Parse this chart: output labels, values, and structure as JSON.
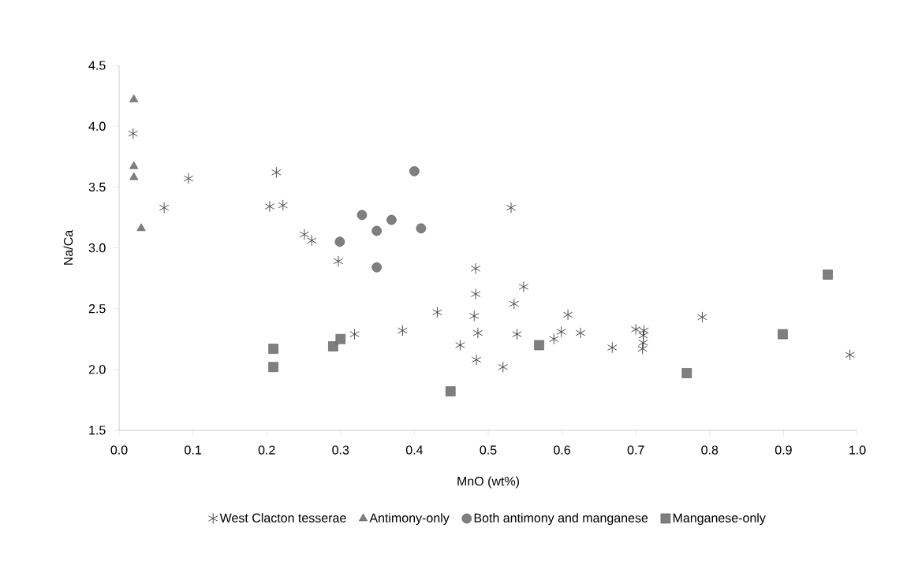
{
  "chart_data": {
    "type": "scatter",
    "xlabel": "MnO (wt%)",
    "ylabel": "Na/Ca",
    "xlim": [
      0,
      1
    ],
    "ylim": [
      1.5,
      4.5
    ],
    "xticks": [
      {
        "value": 0,
        "label": "0.0"
      },
      {
        "value": 0.1,
        "label": "0.1"
      },
      {
        "value": 0.2,
        "label": "0.2"
      },
      {
        "value": 0.3,
        "label": "0.3"
      },
      {
        "value": 0.4,
        "label": "0.4"
      },
      {
        "value": 0.5,
        "label": "0.5"
      },
      {
        "value": 0.6,
        "label": "0.6"
      },
      {
        "value": 0.7,
        "label": "0.7"
      },
      {
        "value": 0.8,
        "label": "0.8"
      },
      {
        "value": 0.9,
        "label": "0.9"
      },
      {
        "value": 1,
        "label": "1.0"
      }
    ],
    "yticks": [
      {
        "value": 1.5,
        "label": "1.5"
      },
      {
        "value": 2,
        "label": "2.0"
      },
      {
        "value": 2.5,
        "label": "2.5"
      },
      {
        "value": 3,
        "label": "3.0"
      },
      {
        "value": 3.5,
        "label": "3.5"
      },
      {
        "value": 4,
        "label": "4.0"
      },
      {
        "value": 4.5,
        "label": "4.5"
      }
    ],
    "legend": "bottom",
    "series": [
      {
        "name": "West Clacton tesserae",
        "color": "#404040",
        "marker": "cross",
        "x": [
          0.019,
          0.061,
          0.094,
          0.213,
          0.204,
          0.222,
          0.251,
          0.261,
          0.297,
          0.531,
          0.483,
          0.483,
          0.548,
          0.535,
          0.431,
          0.481,
          0.608,
          0.79,
          0.486,
          0.539,
          0.599,
          0.625,
          0.7,
          0.711,
          0.589,
          0.462,
          0.668,
          0.709,
          0.71,
          0.71,
          0.484,
          0.52,
          0.99,
          0.319,
          0.384
        ],
        "values": [
          3.94,
          3.33,
          3.57,
          3.62,
          3.34,
          3.35,
          3.11,
          3.06,
          2.89,
          3.33,
          2.83,
          2.62,
          2.68,
          2.54,
          2.47,
          2.44,
          2.45,
          2.43,
          2.3,
          2.29,
          2.31,
          2.3,
          2.33,
          2.32,
          2.25,
          2.2,
          2.18,
          2.17,
          2.28,
          2.22,
          2.08,
          2.02,
          2.12,
          2.29,
          2.32
        ]
      },
      {
        "name": "Antimony-only",
        "color": "#7f7f7f",
        "marker": "triangle",
        "x": [
          0.02,
          0.02,
          0.02,
          0.03
        ],
        "values": [
          4.22,
          3.67,
          3.58,
          3.16
        ]
      },
      {
        "name": "Both antimony and manganese",
        "color": "#7f7f7f",
        "marker": "circle",
        "x": [
          0.4,
          0.329,
          0.369,
          0.349,
          0.409,
          0.299,
          0.349
        ],
        "values": [
          3.63,
          3.27,
          3.23,
          3.14,
          3.16,
          3.05,
          2.84
        ]
      },
      {
        "name": "Manganese-only",
        "color": "#7f7f7f",
        "marker": "square",
        "x": [
          0.209,
          0.209,
          0.29,
          0.3,
          0.96,
          0.569,
          0.449,
          0.769,
          0.899
        ],
        "values": [
          2.17,
          2.02,
          2.19,
          2.25,
          2.78,
          2.2,
          1.82,
          1.97,
          2.29
        ]
      }
    ]
  }
}
